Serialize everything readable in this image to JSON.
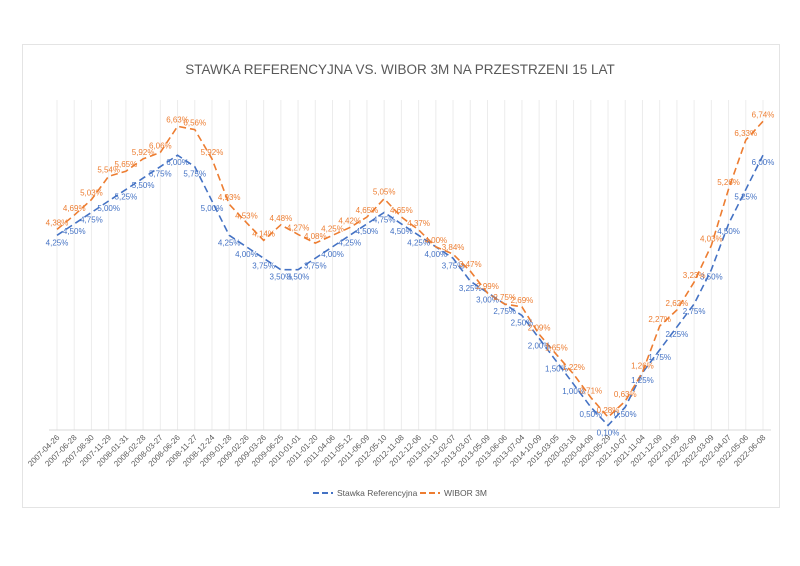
{
  "chart_data": {
    "type": "line",
    "title": "STAWKA REFERENCYJNA VS. WIBOR 3M NA PRZESTRZENI 15 LAT",
    "xlabel": "",
    "ylabel": "",
    "ylim": [
      0,
      7
    ],
    "grid": "vertical",
    "legend": "bottom",
    "categories": [
      "2007-04-26",
      "2007-06-28",
      "2007-08-30",
      "2007-11-29",
      "2008-01-31",
      "2008-02-28",
      "2008-03-27",
      "2008-06-26",
      "2008-11-27",
      "2008-12-24",
      "2009-01-28",
      "2009-02-26",
      "2009-03-26",
      "2009-06-25",
      "2010-01-01",
      "2011-01-20",
      "2011-04-06",
      "2011-05-12",
      "2011-06-09",
      "2012-05-10",
      "2012-11-08",
      "2012-12-06",
      "2013-01-10",
      "2013-02-07",
      "2013-03-07",
      "2013-05-09",
      "2013-06-06",
      "2013-07-04",
      "2014-10-09",
      "2015-03-05",
      "2020-03-18",
      "2020-04-09",
      "2020-05-29",
      "2021-10-07",
      "2021-11-04",
      "2021-12-09",
      "2022-01-05",
      "2022-02-09",
      "2022-03-09",
      "2022-04-07",
      "2022-05-06",
      "2022-06-08"
    ],
    "series": [
      {
        "name": "Stawka Referencyjna",
        "color": "#4472C4",
        "values": [
          4.25,
          4.5,
          4.75,
          5.0,
          5.25,
          5.5,
          5.75,
          6.0,
          5.75,
          5.0,
          4.25,
          4.0,
          3.75,
          3.5,
          3.5,
          3.75,
          4.0,
          4.25,
          4.5,
          4.75,
          4.5,
          4.25,
          4.0,
          3.75,
          3.25,
          3.0,
          2.75,
          2.5,
          2.0,
          1.5,
          1.0,
          0.5,
          0.1,
          0.5,
          1.25,
          1.75,
          2.25,
          2.75,
          3.5,
          4.5,
          5.25,
          6.0
        ]
      },
      {
        "name": "WIBOR 3M",
        "color": "#ED7D31",
        "values": [
          4.38,
          4.69,
          5.03,
          5.54,
          5.65,
          5.92,
          6.06,
          6.63,
          6.56,
          5.92,
          4.93,
          4.53,
          4.14,
          4.48,
          4.27,
          4.08,
          4.25,
          4.42,
          4.65,
          5.05,
          4.65,
          4.37,
          4.0,
          3.84,
          3.47,
          2.99,
          2.75,
          2.69,
          2.09,
          1.65,
          1.22,
          0.71,
          0.28,
          0.63,
          1.26,
          2.27,
          2.62,
          3.23,
          4.03,
          5.26,
          6.33,
          6.74
        ]
      }
    ]
  }
}
